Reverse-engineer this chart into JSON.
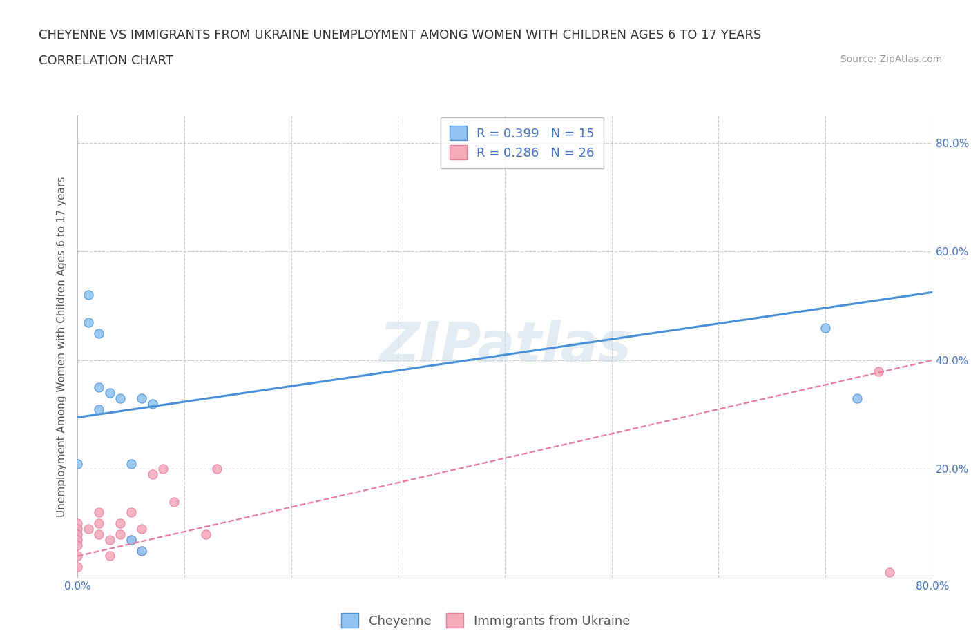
{
  "title_line1": "CHEYENNE VS IMMIGRANTS FROM UKRAINE UNEMPLOYMENT AMONG WOMEN WITH CHILDREN AGES 6 TO 17 YEARS",
  "title_line2": "CORRELATION CHART",
  "source_text": "Source: ZipAtlas.com",
  "ylabel": "Unemployment Among Women with Children Ages 6 to 17 years",
  "xlim": [
    0.0,
    0.8
  ],
  "ylim": [
    0.0,
    0.85
  ],
  "xticks": [
    0.0,
    0.1,
    0.2,
    0.3,
    0.4,
    0.5,
    0.6,
    0.7,
    0.8
  ],
  "yticks": [
    0.0,
    0.2,
    0.4,
    0.6,
    0.8
  ],
  "cheyenne_color": "#92C5F2",
  "ukraine_color": "#F4ACBB",
  "cheyenne_line_color": "#4A90D9",
  "ukraine_line_color": "#E87CA0",
  "R_cheyenne": 0.399,
  "N_cheyenne": 15,
  "R_ukraine": 0.286,
  "N_ukraine": 26,
  "watermark": "ZIPatlas",
  "cheyenne_x": [
    0.0,
    0.01,
    0.01,
    0.02,
    0.02,
    0.02,
    0.03,
    0.04,
    0.05,
    0.05,
    0.06,
    0.06,
    0.07,
    0.7,
    0.73
  ],
  "cheyenne_y": [
    0.21,
    0.52,
    0.47,
    0.45,
    0.35,
    0.31,
    0.34,
    0.33,
    0.21,
    0.07,
    0.33,
    0.05,
    0.32,
    0.46,
    0.33
  ],
  "ukraine_x": [
    0.0,
    0.0,
    0.0,
    0.0,
    0.0,
    0.0,
    0.0,
    0.01,
    0.02,
    0.02,
    0.02,
    0.03,
    0.03,
    0.04,
    0.04,
    0.05,
    0.05,
    0.06,
    0.06,
    0.07,
    0.08,
    0.09,
    0.12,
    0.13,
    0.75,
    0.76
  ],
  "ukraine_y": [
    0.1,
    0.09,
    0.08,
    0.07,
    0.06,
    0.04,
    0.02,
    0.09,
    0.12,
    0.1,
    0.08,
    0.07,
    0.04,
    0.1,
    0.08,
    0.12,
    0.07,
    0.09,
    0.05,
    0.19,
    0.2,
    0.14,
    0.08,
    0.2,
    0.38,
    0.01
  ],
  "cheyenne_trend_x": [
    0.0,
    0.8
  ],
  "cheyenne_trend_y": [
    0.295,
    0.525
  ],
  "ukraine_trend_x": [
    0.0,
    0.8
  ],
  "ukraine_trend_y": [
    0.04,
    0.4
  ],
  "background_color": "#FFFFFF",
  "grid_color": "#CCCCCC",
  "title_fontsize": 13,
  "label_fontsize": 11,
  "tick_fontsize": 11,
  "legend_fontsize": 13,
  "source_fontsize": 10,
  "cheyenne_label": "Cheyenne",
  "ukraine_label": "Immigrants from Ukraine"
}
